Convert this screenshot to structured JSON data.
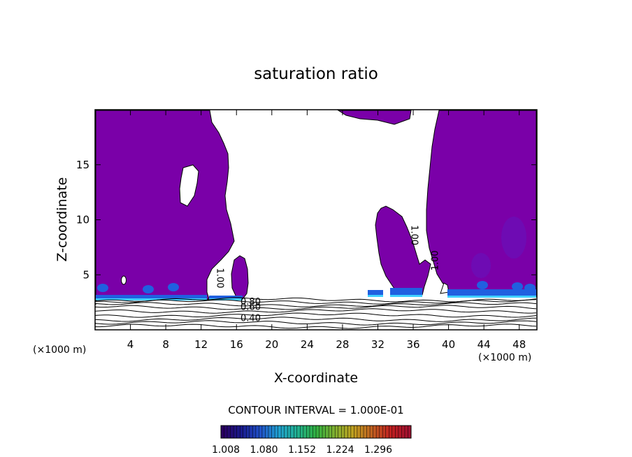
{
  "chart_data": {
    "type": "heatmap",
    "title": "saturation ratio",
    "xlabel": "X-coordinate",
    "ylabel": "Z-coordinate",
    "x_unit": "(×1000 m)",
    "x_unit_right": "(×1000 m)",
    "xlim": [
      0,
      50
    ],
    "ylim": [
      0,
      20
    ],
    "x_ticks": [
      4,
      8,
      12,
      16,
      20,
      24,
      28,
      32,
      36,
      40,
      44,
      48
    ],
    "y_ticks": [
      5,
      10,
      15
    ],
    "contour_interval_text": "CONTOUR INTERVAL = 1.000E-01",
    "contour_labels": [
      {
        "text": "1.00",
        "x": 13.8,
        "z": 4.7,
        "rotate": 90
      },
      {
        "text": "1.00",
        "x": 35.8,
        "z": 8.6,
        "rotate": 90
      },
      {
        "text": "1.00",
        "x": 38.8,
        "z": 6.3,
        "rotate": -90
      },
      {
        "text": "0.80",
        "x": 17.6,
        "z": 2.3,
        "rotate": 0
      },
      {
        "text": "0.60",
        "x": 17.6,
        "z": 1.8,
        "rotate": 0
      },
      {
        "text": "0.40",
        "x": 17.6,
        "z": 0.8,
        "rotate": 0
      }
    ],
    "colorbar": {
      "labels": [
        "1.008",
        "1.080",
        "1.152",
        "1.224",
        "1.296"
      ],
      "colors": [
        "#2a0060",
        "#1a1a8c",
        "#2050c8",
        "#20a0d0",
        "#20b090",
        "#30b040",
        "#80b030",
        "#c0a020",
        "#c06020",
        "#c02020",
        "#a01030"
      ]
    },
    "fill_color": "#7a00a8",
    "band_color": "#2060e0",
    "band_light": "#40d0ff"
  }
}
